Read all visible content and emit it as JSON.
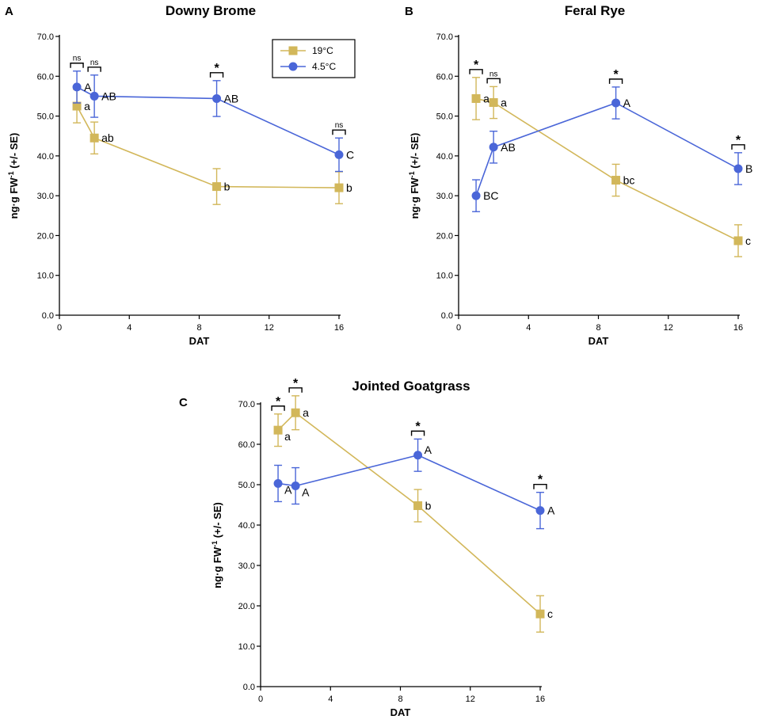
{
  "colors": {
    "warm": "#d2b75a",
    "cold": "#4a66d8",
    "axis": "#000000"
  },
  "legend": [
    {
      "name": "19°C",
      "marker": "square",
      "color": "#d2b75a"
    },
    {
      "name": "4.5°C",
      "marker": "circle",
      "color": "#4a66d8"
    }
  ],
  "chart_data": [
    {
      "panel": "A",
      "type": "line",
      "title": "Downy Brome",
      "xlabel": "DAT",
      "ylabel_main": "ng·g FW",
      "ylabel_sup": "-1",
      "ylabel_tail": " (+/- SE)",
      "xlim": [
        0,
        16
      ],
      "ylim": [
        0,
        70
      ],
      "xticks": [
        0,
        4,
        8,
        12,
        16
      ],
      "xtick_labels": [
        "0",
        "4",
        "8",
        "12",
        "16"
      ],
      "yticks": [
        0,
        10,
        20,
        30,
        40,
        50,
        60,
        70
      ],
      "ytick_labels": [
        "0.0",
        "10.0",
        "20.0",
        "30.0",
        "40.0",
        "50.0",
        "60.0",
        "70.0"
      ],
      "x": [
        1,
        2,
        9,
        16
      ],
      "show_legend": true,
      "series": [
        {
          "name": "19°C",
          "values": [
            52.5,
            44.5,
            32.3,
            32.0
          ],
          "err": [
            4.2,
            4.0,
            4.5,
            4.0
          ],
          "labels": [
            "a",
            "ab",
            "b",
            "b"
          ],
          "label_side": [
            "right",
            "right",
            "right",
            "right"
          ]
        },
        {
          "name": "4.5°C",
          "values": [
            57.3,
            55.0,
            54.4,
            40.3
          ],
          "err": [
            4.0,
            5.3,
            4.5,
            4.2
          ],
          "labels": [
            "A",
            "AB",
            "AB",
            "C"
          ],
          "label_side": [
            "right",
            "right",
            "right",
            "right"
          ]
        }
      ],
      "significance": [
        "ns",
        "ns",
        "*",
        "ns"
      ]
    },
    {
      "panel": "B",
      "type": "line",
      "title": "Feral Rye",
      "xlabel": "DAT",
      "ylabel_main": "ng·g FW",
      "ylabel_sup": "-1",
      "ylabel_tail": " (+/- SE)",
      "xlim": [
        0,
        16
      ],
      "ylim": [
        0,
        70
      ],
      "xticks": [
        0,
        4,
        8,
        12,
        16
      ],
      "xtick_labels": [
        "0",
        "4",
        "8",
        "12",
        "16"
      ],
      "yticks": [
        0,
        10,
        20,
        30,
        40,
        50,
        60,
        70
      ],
      "ytick_labels": [
        "0.0",
        "10.0",
        "20.0",
        "30.0",
        "40.0",
        "50.0",
        "60.0",
        "70.0"
      ],
      "x": [
        1,
        2,
        9,
        16
      ],
      "show_legend": false,
      "series": [
        {
          "name": "19°C",
          "values": [
            54.4,
            53.4,
            33.9,
            18.7
          ],
          "err": [
            5.3,
            4.0,
            4.0,
            4.0
          ],
          "labels": [
            "a",
            "a",
            "bc",
            "c"
          ],
          "label_side": [
            "right",
            "right",
            "right",
            "right"
          ]
        },
        {
          "name": "4.5°C",
          "values": [
            30.0,
            42.2,
            53.3,
            36.8
          ],
          "err": [
            4.0,
            4.0,
            4.0,
            4.0
          ],
          "labels": [
            "BC",
            "AB",
            "A",
            "B"
          ],
          "label_side": [
            "right",
            "right",
            "right",
            "right"
          ]
        }
      ],
      "significance": [
        "*",
        "ns",
        "*",
        "*"
      ]
    },
    {
      "panel": "C",
      "type": "line",
      "title": "Jointed Goatgrass",
      "xlabel": "DAT",
      "ylabel_main": "ng·g FW",
      "ylabel_sup": "-1",
      "ylabel_tail": " (+/- SE)",
      "xlim": [
        0,
        16
      ],
      "ylim": [
        0,
        70
      ],
      "xticks": [
        0,
        4,
        8,
        12,
        16
      ],
      "xtick_labels": [
        "0",
        "4",
        "8",
        "12",
        "16"
      ],
      "yticks": [
        0,
        10,
        20,
        30,
        40,
        50,
        60,
        70
      ],
      "ytick_labels": [
        "0.0",
        "10.0",
        "20.0",
        "30.0",
        "40.0",
        "50.0",
        "60.0",
        "70.0"
      ],
      "x": [
        1,
        2,
        9,
        16
      ],
      "show_legend": false,
      "series": [
        {
          "name": "19°C",
          "values": [
            63.5,
            67.8,
            44.8,
            18.0
          ],
          "err": [
            4.0,
            4.2,
            4.0,
            4.5
          ],
          "labels": [
            "a",
            "a",
            "b",
            "c"
          ],
          "label_side": [
            "below-right",
            "right",
            "right",
            "right"
          ]
        },
        {
          "name": "4.5°C",
          "values": [
            50.3,
            49.7,
            57.3,
            43.6
          ],
          "err": [
            4.5,
            4.5,
            4.0,
            4.5
          ],
          "labels": [
            "A",
            "A",
            "A",
            "A"
          ],
          "label_side": [
            "below-right",
            "below-right",
            "above-right",
            "right"
          ]
        }
      ],
      "significance": [
        "*",
        "*",
        "*",
        "*"
      ]
    }
  ]
}
